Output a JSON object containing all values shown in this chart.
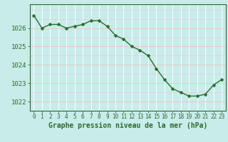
{
  "x": [
    0,
    1,
    2,
    3,
    4,
    5,
    6,
    7,
    8,
    9,
    10,
    11,
    12,
    13,
    14,
    15,
    16,
    17,
    18,
    19,
    20,
    21,
    22,
    23
  ],
  "y": [
    1026.7,
    1026.0,
    1026.2,
    1026.2,
    1026.0,
    1026.1,
    1026.2,
    1026.4,
    1026.4,
    1026.1,
    1025.6,
    1025.4,
    1025.0,
    1024.8,
    1024.5,
    1023.8,
    1023.2,
    1022.7,
    1022.5,
    1022.3,
    1022.3,
    1022.4,
    1022.9,
    1023.2
  ],
  "line_color": "#2d6a2d",
  "marker_color": "#2d6a2d",
  "bg_color": "#c8ecea",
  "grid_color_white": "#ffffff",
  "grid_color_pink": "#e8c8c8",
  "xlabel": "Graphe pression niveau de la mer (hPa)",
  "ylim": [
    1021.5,
    1027.3
  ],
  "xlim": [
    -0.5,
    23.5
  ],
  "yticks": [
    1022,
    1023,
    1024,
    1025,
    1026
  ],
  "xticks": [
    0,
    1,
    2,
    3,
    4,
    5,
    6,
    7,
    8,
    9,
    10,
    11,
    12,
    13,
    14,
    15,
    16,
    17,
    18,
    19,
    20,
    21,
    22,
    23
  ],
  "xlabel_fontsize": 7.0,
  "ytick_fontsize": 6.5,
  "xtick_fontsize": 5.5,
  "marker_size": 2.5,
  "line_width": 1.0
}
